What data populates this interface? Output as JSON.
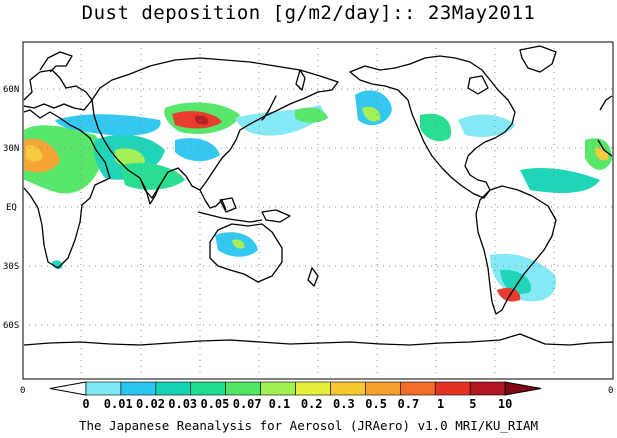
{
  "title": "Dust deposition [g/m2/day]:: 23May2011",
  "credit": "The Japanese Reanalysis for Aerosol (JRAero) v1.0 MRI/KU_RIAM",
  "lat_labels": [
    "60N",
    "30N",
    "EQ",
    "30S",
    "60S"
  ],
  "lon_edge_labels": [
    "0",
    "0"
  ],
  "colorbar": {
    "levels": [
      "0",
      "0.01",
      "0.02",
      "0.03",
      "0.05",
      "0.07",
      "0.1",
      "0.2",
      "0.3",
      "0.5",
      "0.7",
      "1",
      "5",
      "10"
    ],
    "colors": [
      "#ffffff",
      "#7ee8f5",
      "#2ac6f0",
      "#14d2b4",
      "#1edc8c",
      "#50e664",
      "#a0f050",
      "#e6f03c",
      "#f5c832",
      "#f5a02d",
      "#f06e28",
      "#e63223",
      "#b4141e",
      "#7d0a14"
    ]
  }
}
